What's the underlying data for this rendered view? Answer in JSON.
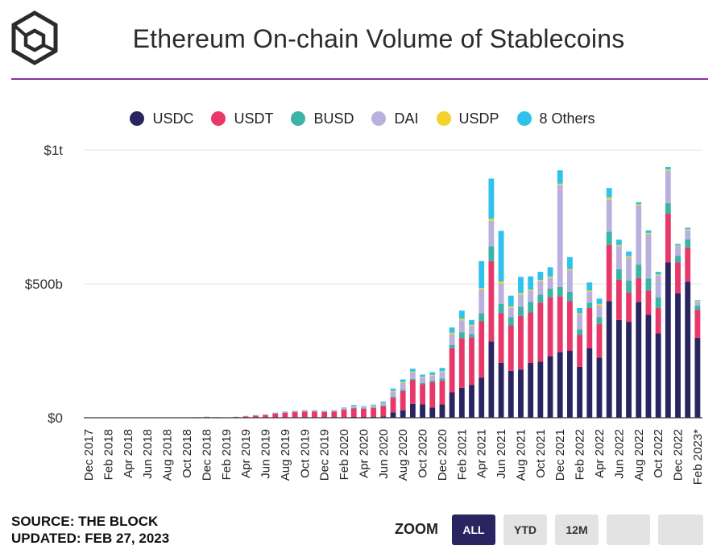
{
  "header": {
    "title": "Ethereum On-chain Volume of Stablecoins",
    "logo_name": "the-block-logo"
  },
  "colors": {
    "USDC": "#2a2460",
    "USDT": "#e8386a",
    "BUSD": "#3bb3a5",
    "DAI": "#bab0de",
    "USDP": "#f5d22a",
    "8 Others": "#2ec2ec",
    "title_rule": "#8e2fa0"
  },
  "legend": [
    {
      "label": "USDC",
      "color": "#2a2460"
    },
    {
      "label": "USDT",
      "color": "#e8386a"
    },
    {
      "label": "BUSD",
      "color": "#3bb3a5"
    },
    {
      "label": "DAI",
      "color": "#bab0de"
    },
    {
      "label": "USDP",
      "color": "#f5d22a"
    },
    {
      "label": "8 Others",
      "color": "#2ec2ec"
    }
  ],
  "chart_data": {
    "type": "bar",
    "stacked": true,
    "title": "Ethereum On-chain Volume of Stablecoins",
    "xlabel": "",
    "ylabel": "",
    "ylim": [
      0,
      1000
    ],
    "unit": "billions USD",
    "y_ticks": [
      0,
      500,
      1000
    ],
    "y_tick_labels": [
      "$0",
      "$500b",
      "$1t"
    ],
    "categories": [
      "Dec 2017",
      "Jan 2018",
      "Feb 2018",
      "Mar 2018",
      "Apr 2018",
      "May 2018",
      "Jun 2018",
      "Jul 2018",
      "Aug 2018",
      "Sep 2018",
      "Oct 2018",
      "Nov 2018",
      "Dec 2018",
      "Jan 2019",
      "Feb 2019",
      "Mar 2019",
      "Apr 2019",
      "May 2019",
      "Jun 2019",
      "Jul 2019",
      "Aug 2019",
      "Sep 2019",
      "Oct 2019",
      "Nov 2019",
      "Dec 2019",
      "Jan 2020",
      "Feb 2020",
      "Mar 2020",
      "Apr 2020",
      "May 2020",
      "Jun 2020",
      "Jul 2020",
      "Aug 2020",
      "Sep 2020",
      "Oct 2020",
      "Nov 2020",
      "Dec 2020",
      "Jan 2021",
      "Feb 2021",
      "Mar 2021",
      "Apr 2021",
      "May 2021",
      "Jun 2021",
      "Jul 2021",
      "Aug 2021",
      "Sep 2021",
      "Oct 2021",
      "Nov 2021",
      "Dec 2021",
      "Jan 2022",
      "Feb 2022",
      "Mar 2022",
      "Apr 2022",
      "May 2022",
      "Jun 2022",
      "Jul 2022",
      "Aug 2022",
      "Sep 2022",
      "Oct 2022",
      "Nov 2022",
      "Dec 2022",
      "Jan 2023",
      "Feb 2023*"
    ],
    "x_tick_labels": [
      "Dec 2017",
      "Feb 2018",
      "Apr 2018",
      "Jun 2018",
      "Aug 2018",
      "Oct 2018",
      "Dec 2018",
      "Feb 2019",
      "Apr 2019",
      "Jun 2019",
      "Aug 2019",
      "Oct 2019",
      "Dec 2019",
      "Feb 2020",
      "Apr 2020",
      "Jun 2020",
      "Aug 2020",
      "Oct 2020",
      "Dec 2020",
      "Feb 2021",
      "Apr 2021",
      "Jun 2021",
      "Aug 2021",
      "Oct 2021",
      "Dec 2021",
      "Feb 2022",
      "Apr 2022",
      "Jun 2022",
      "Aug 2022",
      "Oct 2022",
      "Dec 2022",
      "Feb 2023*"
    ],
    "series": [
      {
        "name": "USDC",
        "values": [
          0,
          0,
          0,
          0,
          0,
          0,
          0,
          0,
          0,
          0,
          0,
          0,
          0,
          0,
          0,
          0,
          0,
          0,
          0,
          1,
          1,
          1,
          1,
          1,
          1,
          1,
          2,
          3,
          3,
          4,
          5,
          20,
          28,
          52,
          50,
          38,
          50,
          95,
          112,
          122,
          150,
          285,
          205,
          175,
          180,
          205,
          210,
          230,
          245,
          250,
          190,
          260,
          225,
          435,
          365,
          358,
          432,
          385,
          315,
          580,
          465,
          508,
          298
        ]
      },
      {
        "name": "USDT",
        "values": [
          0,
          0,
          0,
          0,
          0,
          0,
          0,
          0,
          0,
          0,
          1,
          2,
          3,
          2,
          0,
          3,
          5,
          8,
          10,
          14,
          18,
          20,
          22,
          22,
          20,
          22,
          28,
          32,
          30,
          32,
          38,
          55,
          72,
          88,
          75,
          95,
          88,
          165,
          185,
          178,
          210,
          300,
          185,
          170,
          200,
          188,
          220,
          220,
          208,
          185,
          120,
          150,
          125,
          210,
          150,
          110,
          90,
          90,
          95,
          182,
          115,
          128,
          105
        ]
      },
      {
        "name": "BUSD",
        "values": [
          0,
          0,
          0,
          0,
          0,
          0,
          0,
          0,
          0,
          0,
          0,
          0,
          0,
          0,
          0,
          0,
          0,
          0,
          0,
          0,
          0,
          0,
          0,
          0,
          0,
          0,
          1,
          2,
          2,
          2,
          3,
          4,
          5,
          5,
          5,
          6,
          8,
          12,
          22,
          12,
          30,
          55,
          35,
          30,
          35,
          40,
          30,
          32,
          35,
          35,
          20,
          20,
          25,
          50,
          40,
          45,
          50,
          45,
          40,
          40,
          25,
          30,
          15
        ]
      },
      {
        "name": "DAI",
        "values": [
          0,
          0,
          0,
          0,
          0,
          0,
          0,
          0,
          0,
          0,
          0,
          0,
          1,
          1,
          0,
          1,
          2,
          2,
          3,
          3,
          3,
          4,
          4,
          4,
          4,
          4,
          5,
          8,
          6,
          7,
          8,
          20,
          25,
          25,
          20,
          18,
          25,
          40,
          45,
          30,
          90,
          95,
          75,
          35,
          45,
          40,
          50,
          40,
          380,
          80,
          55,
          40,
          45,
          120,
          85,
          85,
          220,
          165,
          80,
          120,
          35,
          35,
          15
        ]
      },
      {
        "name": "USDP",
        "values": [
          0,
          0,
          0,
          0,
          0,
          0,
          0,
          0,
          0,
          0,
          0,
          0,
          0,
          0,
          0,
          0,
          0,
          0,
          0,
          0,
          0,
          0,
          0,
          0,
          0,
          0,
          0,
          0,
          0,
          1,
          1,
          2,
          3,
          3,
          3,
          3,
          3,
          5,
          6,
          5,
          5,
          8,
          8,
          6,
          6,
          5,
          5,
          5,
          6,
          5,
          5,
          5,
          5,
          8,
          5,
          5,
          5,
          5,
          5,
          5,
          3,
          3,
          3
        ]
      },
      {
        "name": "8 Others",
        "values": [
          0,
          0,
          0,
          0,
          0,
          0,
          0,
          0,
          0,
          0,
          0,
          0,
          0,
          0,
          0,
          0,
          0,
          0,
          0,
          1,
          1,
          1,
          1,
          1,
          1,
          1,
          2,
          3,
          2,
          3,
          5,
          8,
          10,
          10,
          8,
          10,
          12,
          20,
          30,
          18,
          100,
          150,
          190,
          40,
          60,
          50,
          30,
          35,
          50,
          45,
          20,
          30,
          20,
          35,
          20,
          18,
          8,
          10,
          10,
          10,
          6,
          6,
          3
        ]
      }
    ]
  },
  "footer": {
    "source": "SOURCE: THE BLOCK",
    "updated": "UPDATED: FEB 27, 2023",
    "zoom_label": "ZOOM",
    "zoom_buttons": [
      {
        "label": "ALL",
        "active": true
      },
      {
        "label": "YTD",
        "active": false
      },
      {
        "label": "12M",
        "active": false
      },
      {
        "label": "",
        "active": false
      },
      {
        "label": "",
        "active": false
      }
    ]
  }
}
